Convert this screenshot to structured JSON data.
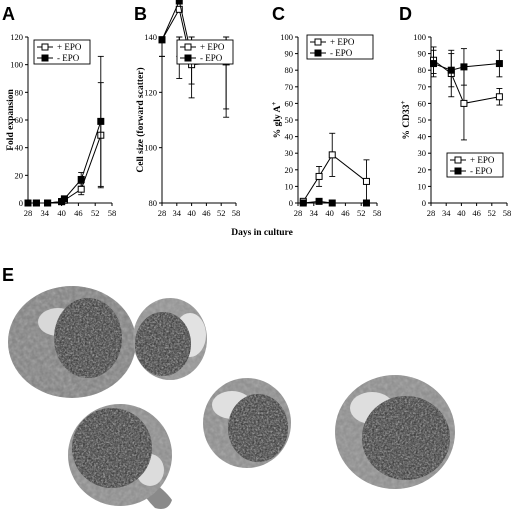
{
  "figure": {
    "shared_xlabel": "Days in culture",
    "micrograph_label": "E"
  },
  "chart_data": [
    {
      "panel": "A",
      "type": "line",
      "ylabel": "Fold expansion",
      "xlim": [
        28,
        58
      ],
      "ylim": [
        0,
        120
      ],
      "xticks": [
        28,
        34,
        40,
        46,
        52,
        58
      ],
      "yticks": [
        0,
        20,
        40,
        60,
        80,
        100,
        120
      ],
      "legend_position": "top-left",
      "series": [
        {
          "name": "+ EPO",
          "marker": "open-square",
          "x": [
            28,
            31,
            35,
            40,
            41,
            47,
            54
          ],
          "y": [
            0,
            0,
            0,
            1,
            2,
            10,
            49
          ],
          "err": [
            0,
            0,
            0,
            1,
            1,
            4,
            38
          ]
        },
        {
          "name": "- EPO",
          "marker": "filled-square",
          "x": [
            28,
            31,
            35,
            40,
            41,
            47,
            54
          ],
          "y": [
            0,
            0,
            0,
            1,
            3,
            17,
            59
          ],
          "err": [
            0,
            0,
            0,
            1,
            2,
            5,
            47
          ]
        }
      ]
    },
    {
      "panel": "B",
      "type": "line",
      "ylabel": "Cell size (forward scatter)",
      "xlim": [
        28,
        58
      ],
      "ylim": [
        80,
        140
      ],
      "xticks": [
        28,
        34,
        40,
        46,
        52,
        58
      ],
      "yticks": [
        80,
        100,
        120,
        140
      ],
      "legend_position": "top-right",
      "series": [
        {
          "name": "+ EPO",
          "marker": "open-square",
          "x": [
            28,
            35,
            40,
            54
          ],
          "y": [
            139,
            150,
            130,
            131
          ],
          "err": [
            6,
            25,
            12,
            20
          ]
        },
        {
          "name": "- EPO",
          "marker": "filled-square",
          "x": [
            28,
            35,
            40,
            54
          ],
          "y": [
            139,
            153,
            133,
            134
          ],
          "err": [
            6,
            20,
            10,
            20
          ]
        }
      ]
    },
    {
      "panel": "C",
      "type": "line",
      "ylabel": "% gly A+",
      "xlim": [
        28,
        58
      ],
      "ylim": [
        0,
        100
      ],
      "xticks": [
        28,
        34,
        40,
        46,
        52,
        58
      ],
      "yticks": [
        0,
        10,
        20,
        30,
        40,
        50,
        60,
        70,
        80,
        90,
        100
      ],
      "legend_position": "top-right",
      "series": [
        {
          "name": "+ EPO",
          "marker": "open-square",
          "x": [
            30,
            36,
            41,
            54
          ],
          "y": [
            1,
            16,
            29,
            13
          ],
          "err": [
            1,
            6,
            13,
            13
          ]
        },
        {
          "name": "- EPO",
          "marker": "filled-square",
          "x": [
            30,
            36,
            41,
            54
          ],
          "y": [
            0,
            1,
            0,
            0
          ],
          "err": [
            0,
            0,
            0,
            0
          ]
        }
      ]
    },
    {
      "panel": "D",
      "type": "line",
      "ylabel": "% CD33+",
      "xlim": [
        28,
        58
      ],
      "ylim": [
        0,
        100
      ],
      "xticks": [
        28,
        34,
        40,
        46,
        52,
        58
      ],
      "yticks": [
        0,
        10,
        20,
        30,
        40,
        50,
        60,
        70,
        80,
        90,
        100
      ],
      "legend_position": "bottom-left",
      "series": [
        {
          "name": "+ EPO",
          "marker": "open-square",
          "x": [
            29,
            36,
            41,
            55
          ],
          "y": [
            86,
            78,
            60,
            64
          ],
          "err": [
            8,
            14,
            22,
            5
          ]
        },
        {
          "name": "- EPO",
          "marker": "filled-square",
          "x": [
            29,
            36,
            41,
            55
          ],
          "y": [
            84,
            80,
            82,
            84
          ],
          "err": [
            8,
            10,
            11,
            8
          ]
        }
      ]
    }
  ]
}
